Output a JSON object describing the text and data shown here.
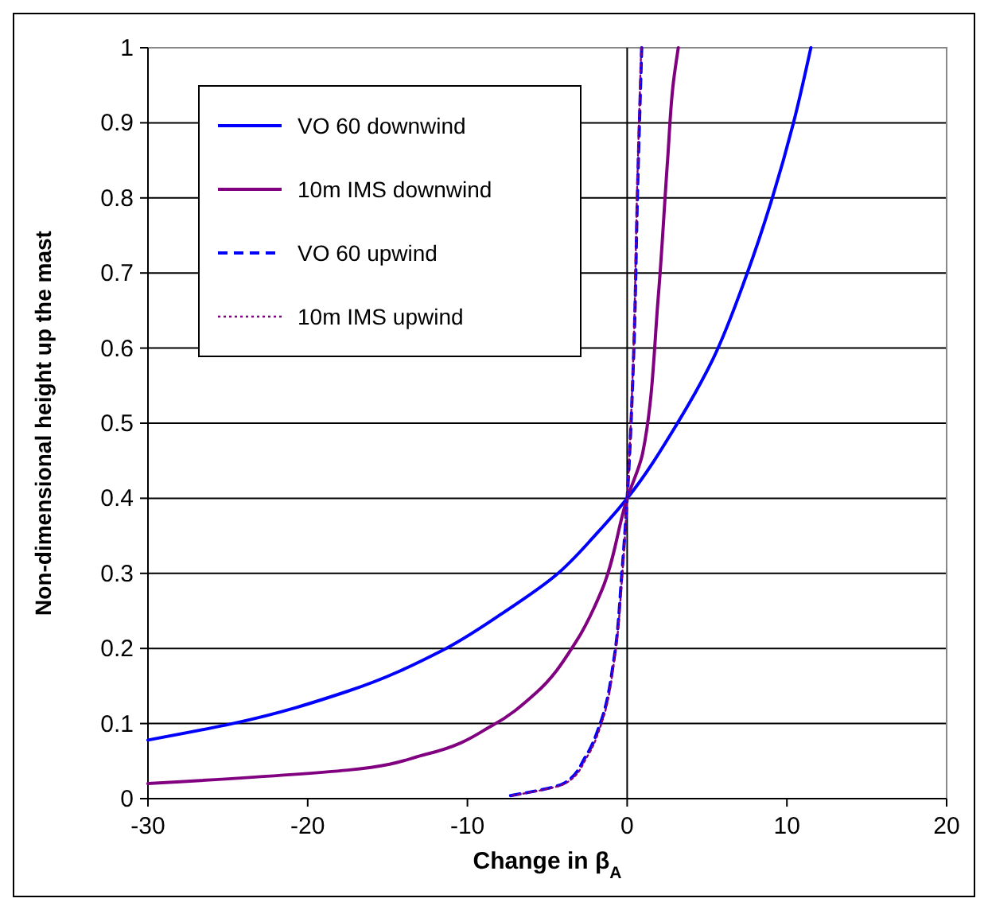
{
  "chart_data": {
    "type": "line",
    "xlabel": "Change in β$_{A}$",
    "ylabel": "Non-dimensional height up the mast",
    "xlim": [
      -30,
      20
    ],
    "ylim": [
      0,
      1
    ],
    "xticks": [
      -30,
      -20,
      -10,
      0,
      10,
      20
    ],
    "yticks": [
      0,
      0.1,
      0.2,
      0.3,
      0.4,
      0.5,
      0.6,
      0.7,
      0.8,
      0.9,
      1
    ],
    "grid": "y",
    "legend": "top left",
    "marker": "none",
    "ref_lines": [
      {
        "axis": "x",
        "value": 0,
        "color": "#000000"
      }
    ],
    "series": [
      {
        "name": "VO 60 downwind",
        "color": "#0000ff",
        "line_style": "solid",
        "x": [
          -30,
          -24.7,
          -17.5,
          -11.7,
          -7.8,
          -4.55,
          -1.95,
          0,
          3.09,
          5.36,
          7.47,
          9.1,
          10.4,
          11.5
        ],
        "values": [
          0.078,
          0.1,
          0.143,
          0.196,
          0.247,
          0.296,
          0.352,
          0.4,
          0.498,
          0.585,
          0.697,
          0.801,
          0.899,
          1
        ]
      },
      {
        "name": "10m IMS downwind",
        "color": "#800080",
        "line_style": "solid",
        "x": [
          -30,
          -17.5,
          -12.6,
          -8.4,
          -5.8,
          -3.2,
          -1.56,
          0,
          0.97,
          1.95,
          2.53,
          2.9,
          3.2
        ],
        "values": [
          0.02,
          0.038,
          0.059,
          0.098,
          0.139,
          0.209,
          0.279,
          0.4,
          0.46,
          0.669,
          0.85,
          0.955,
          1
        ]
      },
      {
        "name": "VO 60 upwind",
        "color": "#0000ff",
        "line_style": "dashed",
        "x": [
          -7.3,
          -3.9,
          -2.6,
          -1.62,
          -0.81,
          -0.33,
          0,
          0.42,
          0.65,
          0.91
        ],
        "values": [
          0.004,
          0.021,
          0.056,
          0.104,
          0.188,
          0.3,
          0.4,
          0.6,
          0.81,
          1
        ]
      },
      {
        "name": "10m IMS upwind",
        "color": "#800080",
        "line_style": "dotted",
        "x": [
          -7.2,
          -3.8,
          -2.5,
          -1.55,
          -0.78,
          -0.3,
          0,
          0.4,
          0.62,
          0.88
        ],
        "values": [
          0.004,
          0.021,
          0.056,
          0.104,
          0.188,
          0.3,
          0.4,
          0.6,
          0.81,
          1
        ]
      }
    ]
  }
}
